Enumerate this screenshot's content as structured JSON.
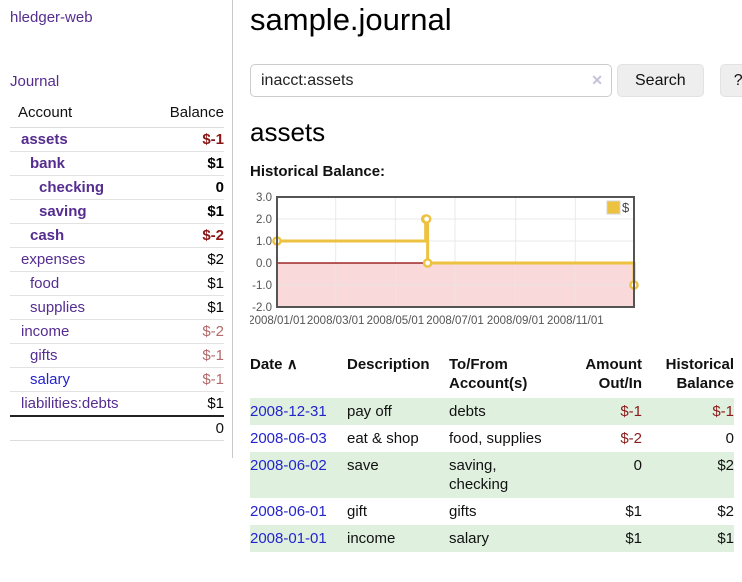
{
  "app": {
    "brand": "hledger-web",
    "journal_link": "Journal"
  },
  "sidebar": {
    "header": {
      "account": "Account",
      "balance": "Balance"
    },
    "accounts": [
      {
        "name": "assets",
        "indent": 0,
        "bold": true,
        "balance": "$-1",
        "balance_tone": "neg-strong"
      },
      {
        "name": "bank",
        "indent": 1,
        "bold": true,
        "balance": "$1",
        "balance_tone": "plain"
      },
      {
        "name": "checking",
        "indent": 2,
        "bold": true,
        "balance": "0",
        "balance_tone": "plain"
      },
      {
        "name": "saving",
        "indent": 2,
        "bold": true,
        "balance": "$1",
        "balance_tone": "plain"
      },
      {
        "name": "cash",
        "indent": 1,
        "bold": true,
        "balance": "$-2",
        "balance_tone": "neg-strong"
      },
      {
        "name": "expenses",
        "indent": 0,
        "bold": false,
        "balance": "$2",
        "balance_tone": "plain"
      },
      {
        "name": "food",
        "indent": 1,
        "bold": false,
        "balance": "$1",
        "balance_tone": "plain"
      },
      {
        "name": "supplies",
        "indent": 1,
        "bold": false,
        "balance": "$1",
        "balance_tone": "plain"
      },
      {
        "name": "income",
        "indent": 0,
        "bold": false,
        "balance": "$-2",
        "balance_tone": "neg-soft"
      },
      {
        "name": "gifts",
        "indent": 1,
        "bold": false,
        "balance": "$-1",
        "balance_tone": "neg-soft"
      },
      {
        "name": "salary",
        "indent": 1,
        "bold": false,
        "link_tone": "unvisited",
        "balance": "$-1",
        "balance_tone": "neg-soft"
      },
      {
        "name": "liabilities:debts",
        "indent": 0,
        "bold": false,
        "balance": "$1",
        "balance_tone": "plain"
      }
    ],
    "total": "0"
  },
  "header": {
    "title": "sample.journal"
  },
  "search": {
    "query": "inacct:assets",
    "clear_icon": "✕",
    "button_label": "Search",
    "help_label": "?"
  },
  "main": {
    "account_title": "assets",
    "chart_label": "Historical Balance:"
  },
  "chart_data": {
    "type": "line",
    "step": true,
    "title": "Historical Balance:",
    "series": [
      {
        "name": "$",
        "points": [
          [
            "2008-01-01",
            1
          ],
          [
            "2008-06-01",
            2
          ],
          [
            "2008-06-02",
            2
          ],
          [
            "2008-06-03",
            0
          ],
          [
            "2008-12-31",
            -1
          ]
        ]
      }
    ],
    "x_range": [
      "2008-01-01",
      "2008-12-31"
    ],
    "ylim": [
      -2,
      3
    ],
    "y_ticks": [
      3,
      2,
      1,
      0,
      -1,
      -2
    ],
    "y_tick_labels": [
      "3.0",
      "2.0",
      "1.0",
      "0.0",
      "-1.0",
      "-2.0"
    ],
    "x_ticks": [
      "2008-01-01",
      "2008-03-01",
      "2008-05-01",
      "2008-07-01",
      "2008-09-01",
      "2008-11-01"
    ],
    "x_tick_labels": [
      "2008/01/01",
      "2008/03/01",
      "2008/05/01",
      "2008/07/01",
      "2008/09/01",
      "2008/11/01"
    ],
    "legend": {
      "label": "$",
      "position": "top-right"
    },
    "grid": true,
    "colors": {
      "line": "#edc240",
      "marker_fill": "#ffffff",
      "negative_region": "#f9d9d9",
      "zero_line": "#8b0000",
      "border": "#545454",
      "grid": "#e6e6e6",
      "tick_text": "#545454"
    }
  },
  "register": {
    "columns": {
      "date": "Date",
      "sort_icon": "∧",
      "description": "Description",
      "accounts": "To/From Account(s)",
      "amount": "Amount Out/In",
      "balance": "Historical Balance"
    },
    "rows": [
      {
        "date": "2008-12-31",
        "description": "pay off",
        "accounts": "debts",
        "amount": "$-1",
        "amount_tone": "neg",
        "balance": "$-1",
        "balance_tone": "neg",
        "shaded": true
      },
      {
        "date": "2008-06-03",
        "description": "eat & shop",
        "accounts": "food, supplies",
        "amount": "$-2",
        "amount_tone": "neg",
        "balance": "0",
        "balance_tone": "plain",
        "shaded": false
      },
      {
        "date": "2008-06-02",
        "description": "save",
        "accounts": "saving, checking",
        "amount": "0",
        "amount_tone": "plain",
        "balance": "$2",
        "balance_tone": "plain",
        "shaded": true
      },
      {
        "date": "2008-06-01",
        "description": "gift",
        "accounts": "gifts",
        "amount": "$1",
        "amount_tone": "plain",
        "balance": "$2",
        "balance_tone": "plain",
        "shaded": false
      },
      {
        "date": "2008-01-01",
        "description": "income",
        "accounts": "salary",
        "amount": "$1",
        "amount_tone": "plain",
        "balance": "$1",
        "balance_tone": "plain",
        "shaded": true
      }
    ]
  },
  "colors": {
    "link_purple": "#552d90",
    "link_blue": "#2424cc",
    "negative_strong": "#8c1515",
    "negative_soft": "#b36a6a",
    "row_shade_green": "#dff0df",
    "chart_line": "#edc240"
  }
}
